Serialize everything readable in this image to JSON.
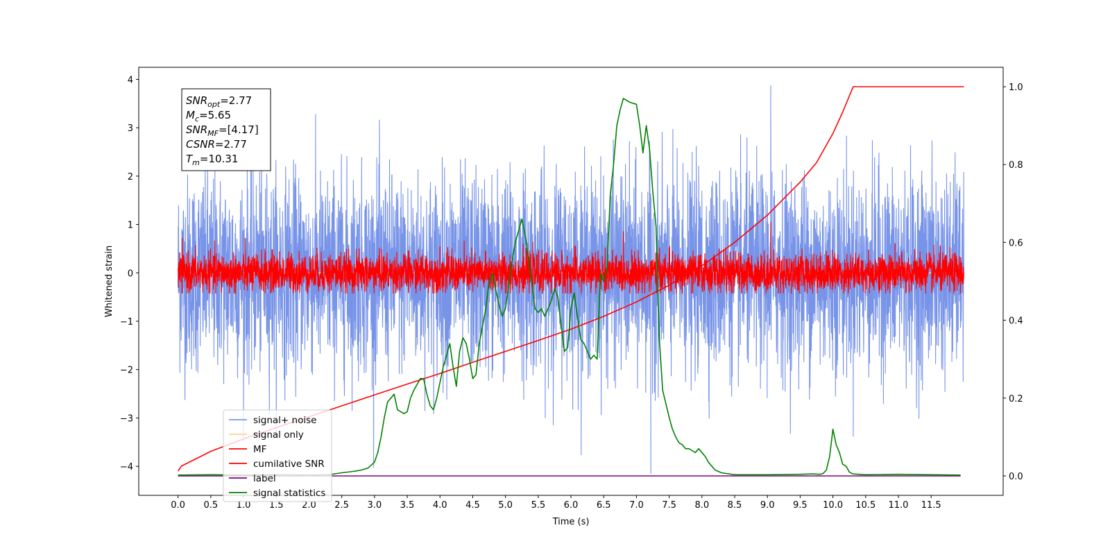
{
  "chart_data": {
    "type": "line",
    "xlabel": "Time (s)",
    "ylabel": "Whitened strain",
    "xlim": [
      -0.6,
      12.6
    ],
    "ylim": [
      -4.6,
      4.25
    ],
    "y2lim": [
      -0.05,
      1.05
    ],
    "x_ticks": [
      "0.0",
      "0.5",
      "1.0",
      "1.5",
      "2.0",
      "2.5",
      "3.0",
      "3.5",
      "4.0",
      "4.5",
      "5.0",
      "5.5",
      "6.0",
      "6.5",
      "7.0",
      "7.5",
      "8.0",
      "8.5",
      "9.0",
      "9.5",
      "10.0",
      "10.5",
      "11.0",
      "11.5"
    ],
    "x_tick_values": [
      0.0,
      0.5,
      1.0,
      1.5,
      2.0,
      2.5,
      3.0,
      3.5,
      4.0,
      4.5,
      5.0,
      5.5,
      6.0,
      6.5,
      7.0,
      7.5,
      8.0,
      8.5,
      9.0,
      9.5,
      10.0,
      10.5,
      11.0,
      11.5
    ],
    "y_ticks": [
      "−4",
      "−3",
      "−2",
      "−1",
      "0",
      "1",
      "2",
      "3",
      "4"
    ],
    "y_tick_values": [
      -4,
      -3,
      -2,
      -1,
      0,
      1,
      2,
      3,
      4
    ],
    "y2_ticks": [
      "0.0",
      "0.2",
      "0.4",
      "0.6",
      "0.8",
      "1.0"
    ],
    "y2_tick_values": [
      0.0,
      0.2,
      0.4,
      0.6,
      0.8,
      1.0
    ],
    "grid": false,
    "legend_position": "lower-left",
    "annotations": [
      {
        "base": "SNR",
        "sub": "opt",
        "value": "=2.77"
      },
      {
        "base": "M",
        "sub": "c",
        "value": "=5.65"
      },
      {
        "base": "SNR",
        "sub": "MF",
        "value": "=[4.17]"
      },
      {
        "base": "CSNR",
        "sub": "",
        "value": "=2.77"
      },
      {
        "base": "T",
        "sub": "m",
        "value": "=10.31"
      }
    ],
    "series": [
      {
        "name": "signal+ noise",
        "color": "#7894e8",
        "axis": "left",
        "kind": "noise",
        "x_range": [
          0.0,
          12.0
        ],
        "sigma": 1.0,
        "peak_min": -4.15,
        "peak_max": 3.87
      },
      {
        "name": "signal only",
        "color": "#ffd58a",
        "axis": "left",
        "kind": "flat",
        "x_range": [
          0.0,
          12.0
        ],
        "value": 0.0
      },
      {
        "name": "MF",
        "color": "#ff0000",
        "axis": "left",
        "kind": "noise",
        "x_range": [
          0.0,
          12.0
        ],
        "sigma": 0.2,
        "peak_min": -0.42,
        "peak_max": 1.05
      },
      {
        "name": "cumilative SNR",
        "color": "#ff0000",
        "axis": "right",
        "x": [
          0.0,
          0.05,
          0.5,
          1.0,
          1.5,
          2.0,
          2.5,
          3.0,
          3.5,
          4.0,
          4.5,
          5.0,
          5.5,
          6.0,
          6.5,
          7.0,
          7.5,
          8.0,
          8.5,
          9.0,
          9.5,
          9.75,
          10.0,
          10.15,
          10.31,
          10.5,
          11.0,
          11.5,
          12.0
        ],
        "values": [
          0.012,
          0.025,
          0.063,
          0.095,
          0.124,
          0.152,
          0.18,
          0.208,
          0.236,
          0.263,
          0.292,
          0.32,
          0.348,
          0.377,
          0.41,
          0.447,
          0.49,
          0.54,
          0.6,
          0.67,
          0.755,
          0.805,
          0.88,
          0.935,
          1.0,
          1.0,
          1.0,
          1.0,
          1.0
        ]
      },
      {
        "name": "label",
        "color": "#800080",
        "axis": "right",
        "x": [
          0.0,
          11.95
        ],
        "values": [
          0.0,
          0.0
        ]
      },
      {
        "name": "signal statistics",
        "color": "#008000",
        "axis": "right",
        "x": [
          0.0,
          0.5,
          1.0,
          1.5,
          2.0,
          2.3,
          2.5,
          2.7,
          2.8,
          2.9,
          3.0,
          3.05,
          3.1,
          3.15,
          3.2,
          3.25,
          3.3,
          3.35,
          3.4,
          3.45,
          3.5,
          3.55,
          3.6,
          3.7,
          3.75,
          3.8,
          3.85,
          3.9,
          3.95,
          4.0,
          4.05,
          4.1,
          4.15,
          4.2,
          4.25,
          4.3,
          4.35,
          4.4,
          4.45,
          4.5,
          4.55,
          4.6,
          4.7,
          4.75,
          4.8,
          4.85,
          4.9,
          4.95,
          5.0,
          5.05,
          5.1,
          5.15,
          5.2,
          5.25,
          5.3,
          5.35,
          5.4,
          5.45,
          5.5,
          5.55,
          5.6,
          5.65,
          5.7,
          5.75,
          5.8,
          5.85,
          5.9,
          5.95,
          6.0,
          6.05,
          6.1,
          6.15,
          6.2,
          6.25,
          6.3,
          6.35,
          6.4,
          6.45,
          6.5,
          6.55,
          6.6,
          6.65,
          6.7,
          6.75,
          6.8,
          6.9,
          7.0,
          7.05,
          7.1,
          7.15,
          7.2,
          7.25,
          7.3,
          7.35,
          7.4,
          7.5,
          7.55,
          7.6,
          7.65,
          7.7,
          7.75,
          7.8,
          7.85,
          7.9,
          7.95,
          8.0,
          8.05,
          8.1,
          8.2,
          8.3,
          8.5,
          9.0,
          9.5,
          9.7,
          9.8,
          9.85,
          9.9,
          9.95,
          10.0,
          10.05,
          10.1,
          10.15,
          10.2,
          10.25,
          10.3,
          10.4,
          10.5,
          11.0,
          11.5,
          11.95
        ],
        "values": [
          0.002,
          0.003,
          0.002,
          0.003,
          0.002,
          0.003,
          0.008,
          0.012,
          0.015,
          0.02,
          0.035,
          0.06,
          0.1,
          0.15,
          0.19,
          0.2,
          0.21,
          0.17,
          0.165,
          0.16,
          0.165,
          0.2,
          0.22,
          0.25,
          0.25,
          0.21,
          0.18,
          0.17,
          0.2,
          0.24,
          0.28,
          0.31,
          0.34,
          0.28,
          0.23,
          0.32,
          0.355,
          0.34,
          0.3,
          0.25,
          0.26,
          0.34,
          0.43,
          0.5,
          0.52,
          0.48,
          0.44,
          0.41,
          0.43,
          0.49,
          0.55,
          0.6,
          0.63,
          0.66,
          0.62,
          0.56,
          0.5,
          0.43,
          0.42,
          0.43,
          0.41,
          0.43,
          0.45,
          0.48,
          0.46,
          0.39,
          0.32,
          0.33,
          0.43,
          0.47,
          0.41,
          0.35,
          0.34,
          0.32,
          0.3,
          0.31,
          0.3,
          0.52,
          0.5,
          0.53,
          0.72,
          0.8,
          0.9,
          0.94,
          0.97,
          0.96,
          0.955,
          0.9,
          0.83,
          0.9,
          0.84,
          0.73,
          0.64,
          0.35,
          0.22,
          0.15,
          0.12,
          0.1,
          0.085,
          0.08,
          0.07,
          0.07,
          0.065,
          0.06,
          0.07,
          0.06,
          0.05,
          0.035,
          0.015,
          0.008,
          0.003,
          0.003,
          0.004,
          0.005,
          0.004,
          0.006,
          0.015,
          0.05,
          0.12,
          0.08,
          0.06,
          0.03,
          0.025,
          0.01,
          0.005,
          0.004,
          0.003,
          0.004,
          0.003,
          0.002
        ]
      }
    ]
  }
}
